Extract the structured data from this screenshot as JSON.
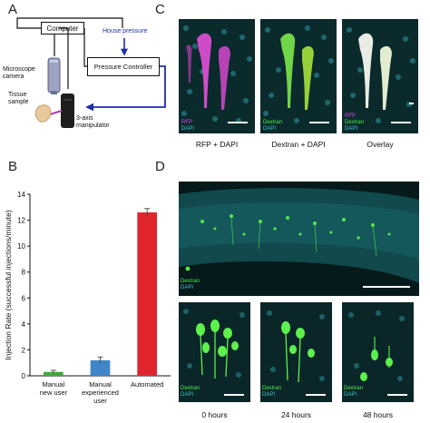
{
  "panels": {
    "a": "A",
    "b": "B",
    "c": "C",
    "d": "D"
  },
  "setup": {
    "computer": "Computer",
    "house_pressure": "House pressure",
    "pressure_controller": "Pressure Controller",
    "microscope_camera": "Microscope\ncamera",
    "tissue_sample": "Tissue\nsample",
    "manipulator": "3-axis\nmanipulator",
    "arrow_color": "#1b2fa8"
  },
  "panel_c": {
    "images": [
      {
        "lines": [
          "RFP",
          "DAPI"
        ],
        "colors": [
          "#e040e8",
          "#3fc6d4"
        ],
        "caption": "RFP + DAPI"
      },
      {
        "lines": [
          "Dextran",
          "DAPI"
        ],
        "colors": [
          "#4cf04a",
          "#3fc6d4"
        ],
        "caption": "Dextran + DAPI"
      },
      {
        "lines": [
          "RFP",
          "Dextran",
          "DAPI"
        ],
        "colors": [
          "#e040e8",
          "#4cf04a",
          "#3fc6d4"
        ],
        "caption": "Overlay"
      }
    ]
  },
  "panel_d": {
    "overview_labels": [
      "Dextran",
      "DAPI"
    ],
    "timepoints": [
      {
        "lines": [
          "Dextran",
          "DAPI"
        ],
        "caption": "0 hours"
      },
      {
        "lines": [
          "Dextran",
          "DAPI"
        ],
        "caption": "24 hours"
      },
      {
        "lines": [
          "Dextran",
          "DAPI"
        ],
        "caption": "48 hours"
      }
    ]
  },
  "chart_data": {
    "type": "bar",
    "ylabel": "Injection Rate (successful injections/minute)",
    "ylim": [
      0,
      14
    ],
    "yticks": [
      0,
      2,
      4,
      6,
      8,
      10,
      12,
      14
    ],
    "categories": [
      "Manual\nnew user",
      "Manual\nexperienced\nuser",
      "Automated"
    ],
    "values": [
      0.3,
      1.2,
      12.6
    ],
    "errors": [
      0.12,
      0.25,
      0.3
    ],
    "colors": [
      "#3dab3d",
      "#3f86c8",
      "#e0262d"
    ]
  }
}
